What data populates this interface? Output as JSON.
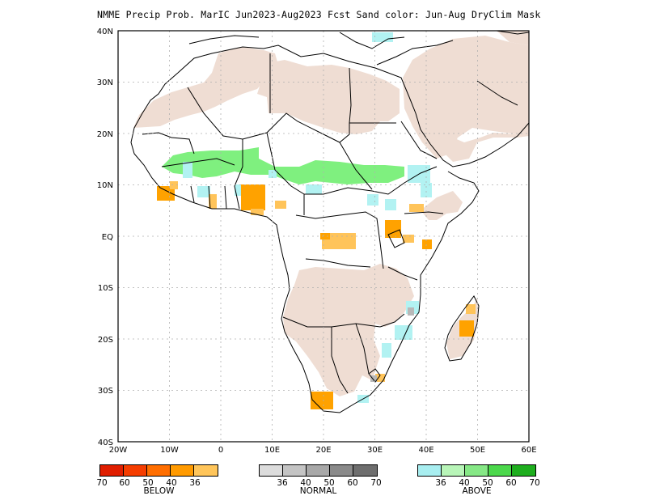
{
  "title": "NMME Precip Prob. MarIC  Jun2023-Aug2023 Fcst  Sand color: Jun-Aug DryClim Mask",
  "axes": {
    "lat_labels": [
      "40N",
      "30N",
      "20N",
      "10N",
      "EQ",
      "10S",
      "20S",
      "30S",
      "40S"
    ],
    "lon_labels": [
      "20W",
      "10W",
      "0",
      "10E",
      "20E",
      "30E",
      "40E",
      "50E",
      "60E"
    ],
    "lat_range": [
      -40,
      40
    ],
    "lon_range": [
      -20,
      60
    ],
    "grid": true
  },
  "colors": {
    "dry_mask": "#efddd3",
    "above_light": "#b2f2f2",
    "above_med": "#7ff07f",
    "normal_grey": "#b8b8b8",
    "below_light": "#ffc45a",
    "below_med": "#ffa200"
  },
  "legends": {
    "below": {
      "label": "BELOW",
      "colors": [
        "#e01e00",
        "#f53d00",
        "#ff6e00",
        "#ff9a00",
        "#ffc55a"
      ],
      "ticks": [
        "70",
        "60",
        "50",
        "40",
        "36"
      ]
    },
    "normal": {
      "label": "NORMAL",
      "colors": [
        "#dcdcdc",
        "#c4c4c4",
        "#a8a8a8",
        "#8a8a8a",
        "#6e6e6e"
      ],
      "ticks": [
        "36",
        "40",
        "50",
        "60",
        "70"
      ]
    },
    "above": {
      "label": "ABOVE",
      "colors": [
        "#a8eef0",
        "#b8f5b8",
        "#86e886",
        "#4cd84c",
        "#1eae1e"
      ],
      "ticks": [
        "36",
        "40",
        "50",
        "60",
        "70"
      ]
    }
  }
}
